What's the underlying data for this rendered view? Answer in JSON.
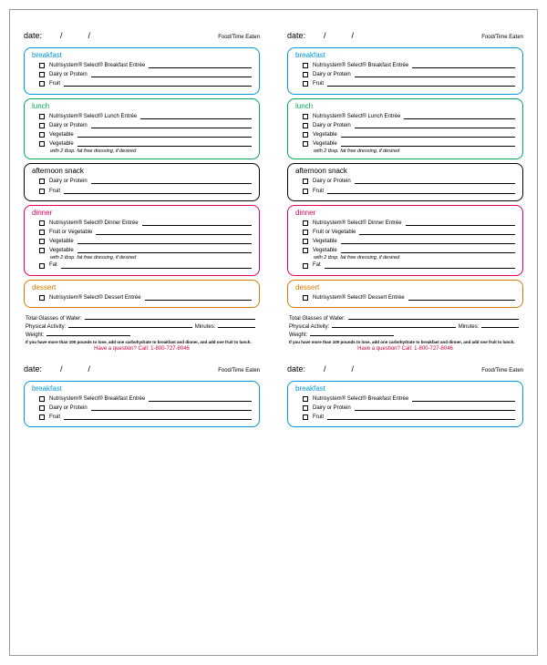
{
  "date_label": "date:",
  "date_slash": "/",
  "food_time": "Food/Time Eaten",
  "colors": {
    "breakfast": "#0099dd",
    "lunch": "#00aa55",
    "snack": "#000000",
    "dinner": "#e6005c",
    "dessert": "#dd7700",
    "phone": "#d00040"
  },
  "meals": {
    "breakfast": {
      "title": "breakfast",
      "items": [
        "Nutrisystem® Select® Breakfast Entrée",
        "Dairy or Protein",
        "Fruit"
      ]
    },
    "lunch": {
      "title": "lunch",
      "note": "with 2 tbsp. fat free dressing, if desired",
      "items": [
        "Nutrisystem® Select® Lunch Entrée",
        "Dairy or Protein",
        "Vegetable",
        "Vegetable"
      ]
    },
    "snack": {
      "title": "afternoon snack",
      "items": [
        "Dairy or Protein",
        "Fruit"
      ]
    },
    "dinner": {
      "title": "dinner",
      "note": "with 2 tbsp. fat free dressing, if desired",
      "items": [
        "Nutrisystem® Select® Dinner Entrée",
        "Fruit or Vegetable",
        "Vegetable",
        "Vegetable"
      ],
      "items_after": [
        "Fat"
      ]
    },
    "dessert": {
      "title": "dessert",
      "items": [
        "Nutrisystem® Select® Dessert Entrée"
      ]
    }
  },
  "footer": {
    "water": "Total Glasses of Water:",
    "activity": "Physical Activity:",
    "minutes": "Minutes:",
    "weight": "Weight:",
    "tiny": "If you have more than 100 pounds to lose, add one carbohydrate to breakfast and dinner, and add one fruit to lunch.",
    "phone": "Have a question? Call: 1-800-727-8046"
  }
}
